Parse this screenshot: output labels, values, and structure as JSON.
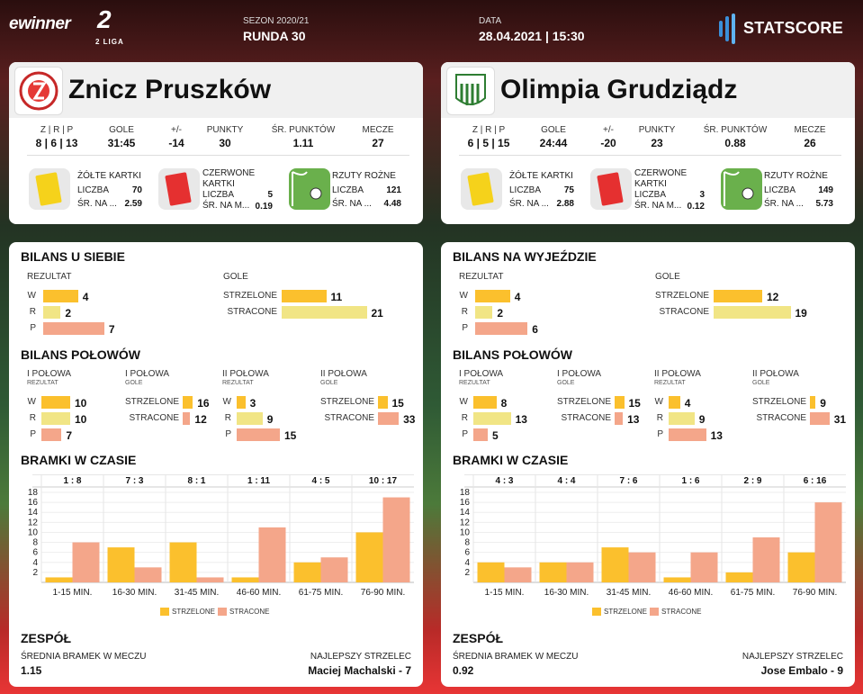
{
  "header": {
    "brand": "ewinner",
    "league_num": "2",
    "league_label": "2 LIGA",
    "season_label": "SEZON 2020/21",
    "round": "RUNDA 30",
    "date_label": "DATA",
    "date": "28.04.2021 | 15:30",
    "provider": "STATSCORE"
  },
  "colors": {
    "scored": "#fbc02d",
    "conceded": "#f4a68a",
    "draw": "#f1e585"
  },
  "teams": [
    {
      "name": "Znicz Pruszków",
      "stats": [
        {
          "l": "Z | R | P",
          "v": "8 | 6 | 13"
        },
        {
          "l": "GOLE",
          "v": "31:45"
        },
        {
          "l": "+/-",
          "v": "-14"
        },
        {
          "l": "PUNKTY",
          "v": "30"
        },
        {
          "l": "ŚR. PUNKTÓW",
          "v": "1.11"
        },
        {
          "l": "MECZE",
          "v": "27"
        }
      ],
      "cards": {
        "yellow": {
          "title": "ŻÓŁTE KARTKI",
          "count_label": "LICZBA",
          "count": "70",
          "avg_label": "ŚR. NA ...",
          "avg": "2.59"
        },
        "red": {
          "title1": "CZERWONE",
          "title2": "KARTKI",
          "count_label": "LICZBA",
          "count": "5",
          "avg_label": "ŚR. NA M...",
          "avg": "0.19"
        },
        "corners": {
          "title": "RZUTY ROŻNE",
          "count_label": "LICZBA",
          "count": "121",
          "avg_label": "ŚR. NA ...",
          "avg": "4.48"
        }
      },
      "balance": {
        "title": "BILANS U SIEBIE",
        "res_label": "REZULTAT",
        "goals_label": "GOLE",
        "results": [
          {
            "k": "W",
            "v": 4
          },
          {
            "k": "R",
            "v": 2
          },
          {
            "k": "P",
            "v": 7
          }
        ],
        "goals": [
          {
            "k": "STRZELONE",
            "v": 11
          },
          {
            "k": "STRACONE",
            "v": 21
          }
        ]
      },
      "halves": {
        "title": "BILANS POŁOWÓW",
        "h1_res": {
          "label": "I POŁOWA",
          "sub": "REZULTAT",
          "rows": [
            {
              "k": "W",
              "v": 10
            },
            {
              "k": "R",
              "v": 10
            },
            {
              "k": "P",
              "v": 7
            }
          ]
        },
        "h1_goals": {
          "label": "I POŁOWA",
          "sub": "GOLE",
          "rows": [
            {
              "k": "STRZELONE",
              "v": 16
            },
            {
              "k": "STRACONE",
              "v": 12
            }
          ]
        },
        "h2_res": {
          "label": "II POŁOWA",
          "sub": "REZULTAT",
          "rows": [
            {
              "k": "W",
              "v": 3
            },
            {
              "k": "R",
              "v": 9
            },
            {
              "k": "P",
              "v": 15
            }
          ]
        },
        "h2_goals": {
          "label": "II POŁOWA",
          "sub": "GOLE",
          "rows": [
            {
              "k": "STRZELONE",
              "v": 15
            },
            {
              "k": "STRACONE",
              "v": 33
            }
          ]
        }
      },
      "time": {
        "title": "BRAMKI W CZASIE",
        "scores": [
          "1 : 8",
          "7 : 3",
          "8 : 1",
          "1 : 11",
          "4 : 5",
          "10 : 17"
        ],
        "legend_scored": "STRZELONE",
        "legend_conceded": "STRACONE"
      },
      "team": {
        "title": "ZESPÓŁ",
        "avg_label": "ŚREDNIA BRAMEK W MECZU",
        "avg": "1.15",
        "scorer_label": "NAJLEPSZY STRZELEC",
        "scorer": "Maciej Machalski - 7"
      }
    },
    {
      "name": "Olimpia Grudziądz",
      "stats": [
        {
          "l": "Z | R | P",
          "v": "6 | 5 | 15"
        },
        {
          "l": "GOLE",
          "v": "24:44"
        },
        {
          "l": "+/-",
          "v": "-20"
        },
        {
          "l": "PUNKTY",
          "v": "23"
        },
        {
          "l": "ŚR. PUNKTÓW",
          "v": "0.88"
        },
        {
          "l": "MECZE",
          "v": "26"
        }
      ],
      "cards": {
        "yellow": {
          "title": "ŻÓŁTE KARTKI",
          "count_label": "LICZBA",
          "count": "75",
          "avg_label": "ŚR. NA ...",
          "avg": "2.88"
        },
        "red": {
          "title1": "CZERWONE",
          "title2": "KARTKI",
          "count_label": "LICZBA",
          "count": "3",
          "avg_label": "ŚR. NA M...",
          "avg": "0.12"
        },
        "corners": {
          "title": "RZUTY ROŻNE",
          "count_label": "LICZBA",
          "count": "149",
          "avg_label": "ŚR. NA ...",
          "avg": "5.73"
        }
      },
      "balance": {
        "title": "BILANS NA WYJEŹDZIE",
        "res_label": "REZULTAT",
        "goals_label": "GOLE",
        "results": [
          {
            "k": "W",
            "v": 4
          },
          {
            "k": "R",
            "v": 2
          },
          {
            "k": "P",
            "v": 6
          }
        ],
        "goals": [
          {
            "k": "STRZELONE",
            "v": 12
          },
          {
            "k": "STRACONE",
            "v": 19
          }
        ]
      },
      "halves": {
        "title": "BILANS POŁOWÓW",
        "h1_res": {
          "label": "I POŁOWA",
          "sub": "REZULTAT",
          "rows": [
            {
              "k": "W",
              "v": 8
            },
            {
              "k": "R",
              "v": 13
            },
            {
              "k": "P",
              "v": 5
            }
          ]
        },
        "h1_goals": {
          "label": "I POŁOWA",
          "sub": "GOLE",
          "rows": [
            {
              "k": "STRZELONE",
              "v": 15
            },
            {
              "k": "STRACONE",
              "v": 13
            }
          ]
        },
        "h2_res": {
          "label": "II POŁOWA",
          "sub": "REZULTAT",
          "rows": [
            {
              "k": "W",
              "v": 4
            },
            {
              "k": "R",
              "v": 9
            },
            {
              "k": "P",
              "v": 13
            }
          ]
        },
        "h2_goals": {
          "label": "II POŁOWA",
          "sub": "GOLE",
          "rows": [
            {
              "k": "STRZELONE",
              "v": 9
            },
            {
              "k": "STRACONE",
              "v": 31
            }
          ]
        }
      },
      "time": {
        "title": "BRAMKI W CZASIE",
        "scores": [
          "4 : 3",
          "4 : 4",
          "7 : 6",
          "1 : 6",
          "2 : 9",
          "6 : 16"
        ],
        "legend_scored": "STRZELONE",
        "legend_conceded": "STRACONE"
      },
      "team": {
        "title": "ZESPÓŁ",
        "avg_label": "ŚREDNIA BRAMEK W MECZU",
        "avg": "0.92",
        "scorer_label": "NAJLEPSZY STRZELEC",
        "scorer": "Jose Embalo - 9"
      }
    }
  ],
  "chart_data": [
    {
      "type": "bar",
      "categories": [
        "1-15 MIN.",
        "16-30 MIN.",
        "31-45 MIN.",
        "46-60 MIN.",
        "61-75 MIN.",
        "76-90 MIN."
      ],
      "series": [
        {
          "name": "STRZELONE",
          "values": [
            1,
            7,
            8,
            1,
            4,
            10
          ]
        },
        {
          "name": "STRACONE",
          "values": [
            8,
            3,
            1,
            11,
            5,
            17
          ]
        }
      ],
      "yticks": [
        2,
        4,
        6,
        8,
        10,
        12,
        14,
        16,
        18
      ],
      "ylim": [
        0,
        18
      ]
    },
    {
      "type": "bar",
      "categories": [
        "1-15 MIN.",
        "16-30 MIN.",
        "31-45 MIN.",
        "46-60 MIN.",
        "61-75 MIN.",
        "76-90 MIN."
      ],
      "series": [
        {
          "name": "STRZELONE",
          "values": [
            4,
            4,
            7,
            1,
            2,
            6
          ]
        },
        {
          "name": "STRACONE",
          "values": [
            3,
            4,
            6,
            6,
            9,
            16
          ]
        }
      ],
      "yticks": [
        2,
        4,
        6,
        8,
        10,
        12,
        14,
        16,
        18
      ],
      "ylim": [
        0,
        18
      ]
    }
  ]
}
